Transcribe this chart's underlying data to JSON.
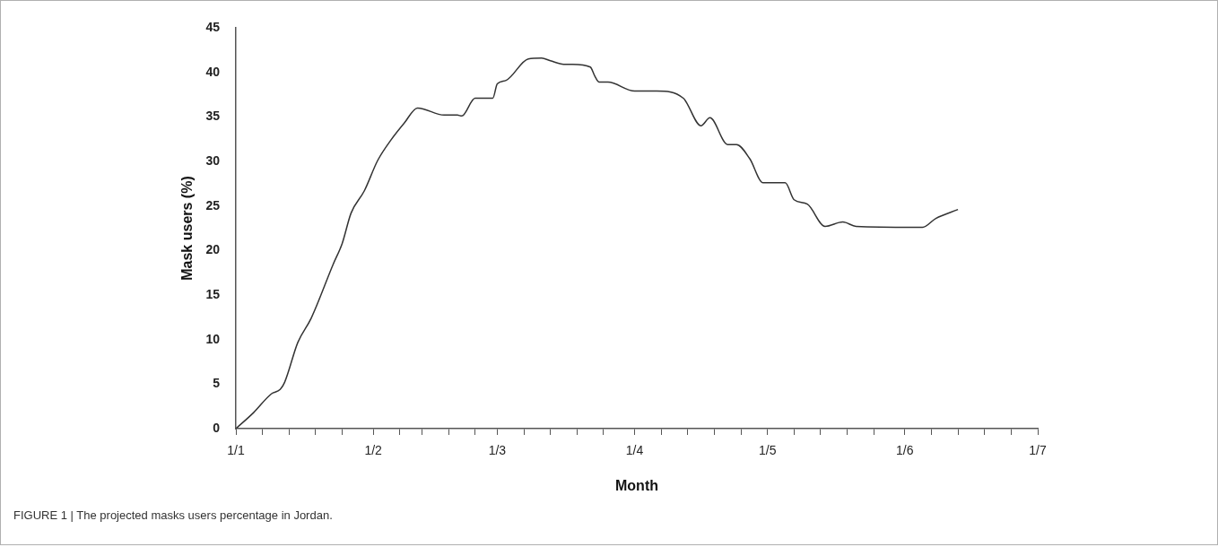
{
  "chart_data": {
    "type": "line",
    "xlabel": "Month",
    "ylabel": "Mask users (%)",
    "annotations": [
      "FIGURE 1 | The projected masks users percentage in Jordan."
    ],
    "xlim": [
      "--01-01",
      "--07-01"
    ],
    "xticks": [
      {
        "value": "--01-01",
        "label": "1/1"
      },
      {
        "value": "--01-07",
        "label": null
      },
      {
        "value": "--01-13",
        "label": null
      },
      {
        "value": "--01-19",
        "label": null
      },
      {
        "value": "--01-25",
        "label": null
      },
      {
        "value": "--02-01",
        "label": "1/2"
      },
      {
        "value": "--02-07",
        "label": null
      },
      {
        "value": "--02-12",
        "label": null
      },
      {
        "value": "--02-18",
        "label": null
      },
      {
        "value": "--02-24",
        "label": null
      },
      {
        "value": "--03-01",
        "label": "1/3"
      },
      {
        "value": "--03-07",
        "label": null
      },
      {
        "value": "--03-13",
        "label": null
      },
      {
        "value": "--03-19",
        "label": null
      },
      {
        "value": "--03-25",
        "label": null
      },
      {
        "value": "--04-01",
        "label": "1/4"
      },
      {
        "value": "--04-07",
        "label": null
      },
      {
        "value": "--04-13",
        "label": null
      },
      {
        "value": "--04-19",
        "label": null
      },
      {
        "value": "--04-25",
        "label": null
      },
      {
        "value": "--05-01",
        "label": "1/5"
      },
      {
        "value": "--05-07",
        "label": null
      },
      {
        "value": "--05-13",
        "label": null
      },
      {
        "value": "--05-19",
        "label": null
      },
      {
        "value": "--05-25",
        "label": null
      },
      {
        "value": "--06-01",
        "label": "1/6"
      },
      {
        "value": "--06-07",
        "label": null
      },
      {
        "value": "--06-13",
        "label": null
      },
      {
        "value": "--06-19",
        "label": null
      },
      {
        "value": "--06-25",
        "label": null
      },
      {
        "value": "--07-01",
        "label": "1/7"
      }
    ],
    "ylim": [
      0,
      45
    ],
    "yticks": [
      0,
      5,
      10,
      15,
      20,
      25,
      30,
      35,
      40,
      45
    ],
    "grid": false,
    "legend": false,
    "marker": "none",
    "line_style": "solid",
    "series": [
      {
        "color": "#333333",
        "x": [
          "--01-01",
          "--01-05",
          "--01-09",
          "--01-11",
          "--01-12",
          "--01-15",
          "--01-18",
          "--01-23",
          "--01-25",
          "--01-27",
          "--01-30",
          "--02-02",
          "--02-05",
          "--02-08",
          "--02-11",
          "--02-17",
          "--02-20",
          "--02-21",
          "--02-24",
          "--02-28",
          "--03-01",
          "--03-03",
          "--03-08",
          "--03-11",
          "--03-13",
          "--03-16",
          "--03-18",
          "--03-22",
          "--03-23",
          "--03-24",
          "--03-26",
          "--04-01",
          "--04-06",
          "--04-12",
          "--04-16",
          "--04-18",
          "--04-22",
          "--04-24",
          "--04-27",
          "--04-30",
          "--05-05",
          "--05-07",
          "--05-10",
          "--05-14",
          "--05-18",
          "--05-21",
          "--06-05",
          "--06-08",
          "--06-13"
        ],
        "values": [
          0,
          1.8,
          3.9,
          4.4,
          5.2,
          9.7,
          12.4,
          18.5,
          20.8,
          24.2,
          26.7,
          30.1,
          32.4,
          34.3,
          36,
          35.2,
          35.2,
          35.1,
          37.1,
          37.1,
          38.7,
          39.1,
          41.5,
          41.6,
          41.3,
          40.9,
          40.9,
          40.6,
          39.6,
          38.9,
          38.9,
          37.9,
          37.9,
          37.1,
          34,
          34.9,
          31.9,
          31.9,
          30.3,
          27.6,
          27.6,
          25.7,
          25.2,
          22.7,
          23.2,
          22.7,
          22.6,
          23.6,
          24.6
        ]
      }
    ]
  }
}
